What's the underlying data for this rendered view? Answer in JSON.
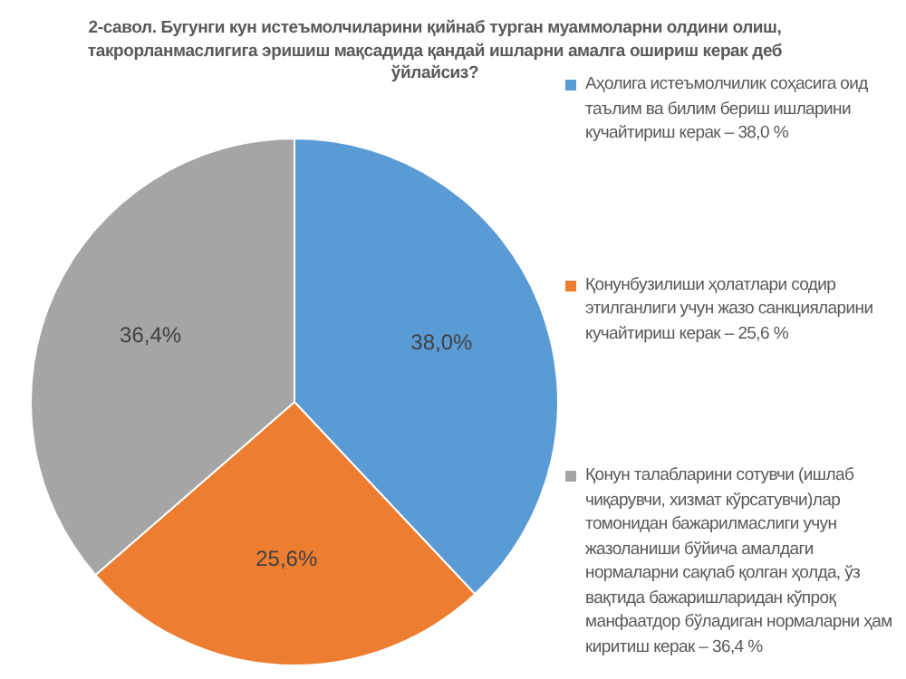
{
  "chart_data": {
    "type": "pie",
    "title": "2-савол. Бугунги кун истеъмолчиларини қийнаб турган муаммоларни олдини олиш, такрорланмаслигига эришиш мақсадида қандай ишларни амалга ошириш керак деб ўйлайсиз?",
    "categories": [
      "Аҳолига истеъмолчилик соҳасига оид таълим ва билим бериш ишларини кучайтириш керак – 38,0 %",
      "Қонунбузилиши ҳолатлари содир этилганлиги учун жазо санкцияларини кучайтириш керак – 25,6 %",
      "Қонун талабларини сотувчи (ишлаб чиқарувчи, хизмат кўрсатувчи)лар томонидан бажарилмаслиги учун жазоланиши бўйича амалдаги нормаларни сақлаб қолган ҳолда, ўз вақтида бажаришларидан кўпроқ манфаатдор бўладиган нормаларни ҳам киритиш керак – 36,4 %"
    ],
    "values": [
      38.0,
      25.6,
      36.4
    ],
    "colors": [
      "#5b9bd5",
      "#ed7d31",
      "#a5a5a5"
    ],
    "value_labels": [
      "38,0%",
      "25,6%",
      "36,4%"
    ],
    "legend": "right"
  }
}
